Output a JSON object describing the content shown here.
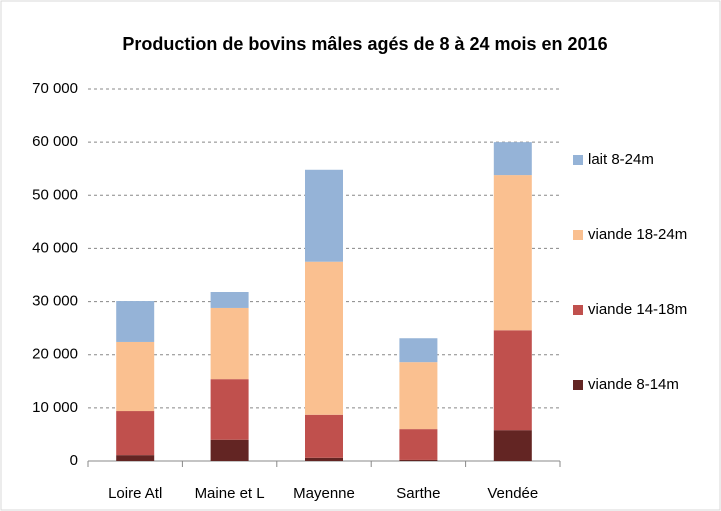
{
  "chart_data": {
    "type": "bar",
    "stacked": true,
    "title": "Production de bovins mâles agés de 8 à 24 mois en 2016",
    "categories": [
      "Loire Atl",
      "Maine et L",
      "Mayenne",
      "Sarthe",
      "Vendée"
    ],
    "series": [
      {
        "name": "viande 8-14m",
        "color": "#632523",
        "values": [
          1100,
          4000,
          600,
          200,
          5800
        ]
      },
      {
        "name": "viande 14-18m",
        "color": "#c0504d",
        "values": [
          8300,
          11400,
          8100,
          5800,
          18800
        ]
      },
      {
        "name": "viande 18-24m",
        "color": "#fac090",
        "values": [
          13000,
          13400,
          28800,
          12600,
          29200
        ]
      },
      {
        "name": "lait 8-24m",
        "color": "#95b3d7",
        "values": [
          7700,
          3000,
          17300,
          4500,
          6200
        ]
      }
    ],
    "ylim": [
      0,
      70000
    ],
    "yticks": [
      0,
      {
        "value": 10000,
        "label": "10 000"
      },
      {
        "value": 20000,
        "label": "20 000"
      },
      {
        "value": 30000,
        "label": "30 000"
      },
      {
        "value": 40000,
        "label": "40 000"
      },
      {
        "value": 50000,
        "label": "50 000"
      },
      {
        "value": 60000,
        "label": "60 000"
      },
      {
        "value": 70000,
        "label": "70 000"
      }
    ],
    "grid": true,
    "legend": "right"
  }
}
